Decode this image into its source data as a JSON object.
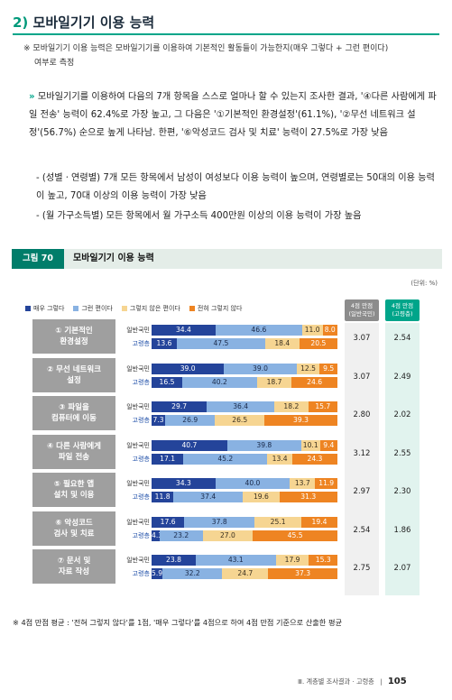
{
  "section": {
    "number": "2)",
    "title": "모바일기기 이용 능력"
  },
  "note": {
    "marker": "※",
    "line1": "모바일기기 이용 능력은 모바일기기를 이용하여 기본적인 활동들이 가능한지(매우 그렇다 + 그런 편이다)",
    "line2": "여부로 측정"
  },
  "paragraph": {
    "marker": "»",
    "text": "모바일기기를 이용하여 다음의 7개 항목을 스스로 얼마나 할 수 있는지 조사한 결과, '④다른 사람에게 파일 전송' 능력이 62.4%로 가장 높고, 그 다음은 '①기본적인 환경설정'(61.1%), '②무선 네트워크 설정'(56.7%) 순으로 높게 나타남. 한편, '⑥악성코드 검사 및 치료' 능력이 27.5%로 가장 낮음"
  },
  "bullets": [
    "- (성별ㆍ연령별) 7개 모든 항목에서 남성이 여성보다 이용 능력이 높으며, 연령별로는 50대의 이용 능력이 높고, 70대 이상의 이용 능력이 가장 낮음",
    "- (월 가구소득별) 모든 항목에서 월 가구소득 400만원 이상의 이용 능력이 가장 높음"
  ],
  "figure": {
    "tag": "그림 70",
    "title": "모바일기기 이용 능력",
    "unit": "(단위: %)",
    "col_header_a": {
      "line1": "4점 만점",
      "line2": "(일반국민)"
    },
    "col_header_b": {
      "line1": "4점 만점",
      "line2": "(고령층)"
    }
  },
  "chart_data": {
    "type": "bar",
    "stacked": true,
    "orientation": "horizontal",
    "legend": [
      "매우 그렇다",
      "그런 편이다",
      "그렇지 않은 편이다",
      "전혀 그렇지 않다"
    ],
    "legend_placement": "top-left",
    "colors": [
      "#24449a",
      "#89b2e2",
      "#f6d592",
      "#ee8422"
    ],
    "groups": [
      "일반국민",
      "고령층"
    ],
    "items": [
      {
        "label": "① 기본적인\n환경설정",
        "general": [
          34.4,
          46.6,
          11.0,
          8.0
        ],
        "elderly": [
          13.6,
          47.5,
          18.4,
          20.5
        ],
        "score_general": "3.07",
        "score_elderly": "2.54"
      },
      {
        "label": "② 무선 네트워크\n설정",
        "general": [
          39.0,
          39.0,
          12.5,
          9.5
        ],
        "elderly": [
          16.5,
          40.2,
          18.7,
          24.6
        ],
        "score_general": "3.07",
        "score_elderly": "2.49"
      },
      {
        "label": "③ 파일을\n컴퓨터에 이동",
        "general": [
          29.7,
          36.4,
          18.2,
          15.7
        ],
        "elderly": [
          7.3,
          26.9,
          26.5,
          39.3
        ],
        "score_general": "2.80",
        "score_elderly": "2.02"
      },
      {
        "label": "④ 다른 사람에게\n파일 전송",
        "general": [
          40.7,
          39.8,
          10.1,
          9.4
        ],
        "elderly": [
          17.1,
          45.2,
          13.4,
          24.3
        ],
        "score_general": "3.12",
        "score_elderly": "2.55"
      },
      {
        "label": "⑤ 필요한 앱\n설치 및 이용",
        "general": [
          34.3,
          40.0,
          13.7,
          11.9
        ],
        "elderly": [
          11.8,
          37.4,
          19.6,
          31.3
        ],
        "score_general": "2.97",
        "score_elderly": "2.30"
      },
      {
        "label": "⑥ 악성코드\n검사 및 치료",
        "general": [
          17.6,
          37.8,
          25.1,
          19.4
        ],
        "elderly": [
          4.3,
          23.2,
          27.0,
          45.5
        ],
        "score_general": "2.54",
        "score_elderly": "1.86"
      },
      {
        "label": "⑦ 문서 및\n자료 작성",
        "general": [
          23.8,
          43.1,
          17.9,
          15.3
        ],
        "elderly": [
          5.9,
          32.2,
          24.7,
          37.3
        ],
        "score_general": "2.75",
        "score_elderly": "2.07"
      }
    ]
  },
  "footnote": "※ 4점 만점 평균 : '전혀 그렇지 않다'를 1점, '매우 그렇다'를 4점으로 하여 4점 만점 기준으로 산출한 평균",
  "footer": {
    "section": "Ⅲ. 계층별 조사결과 · 고령층",
    "page": "105"
  }
}
